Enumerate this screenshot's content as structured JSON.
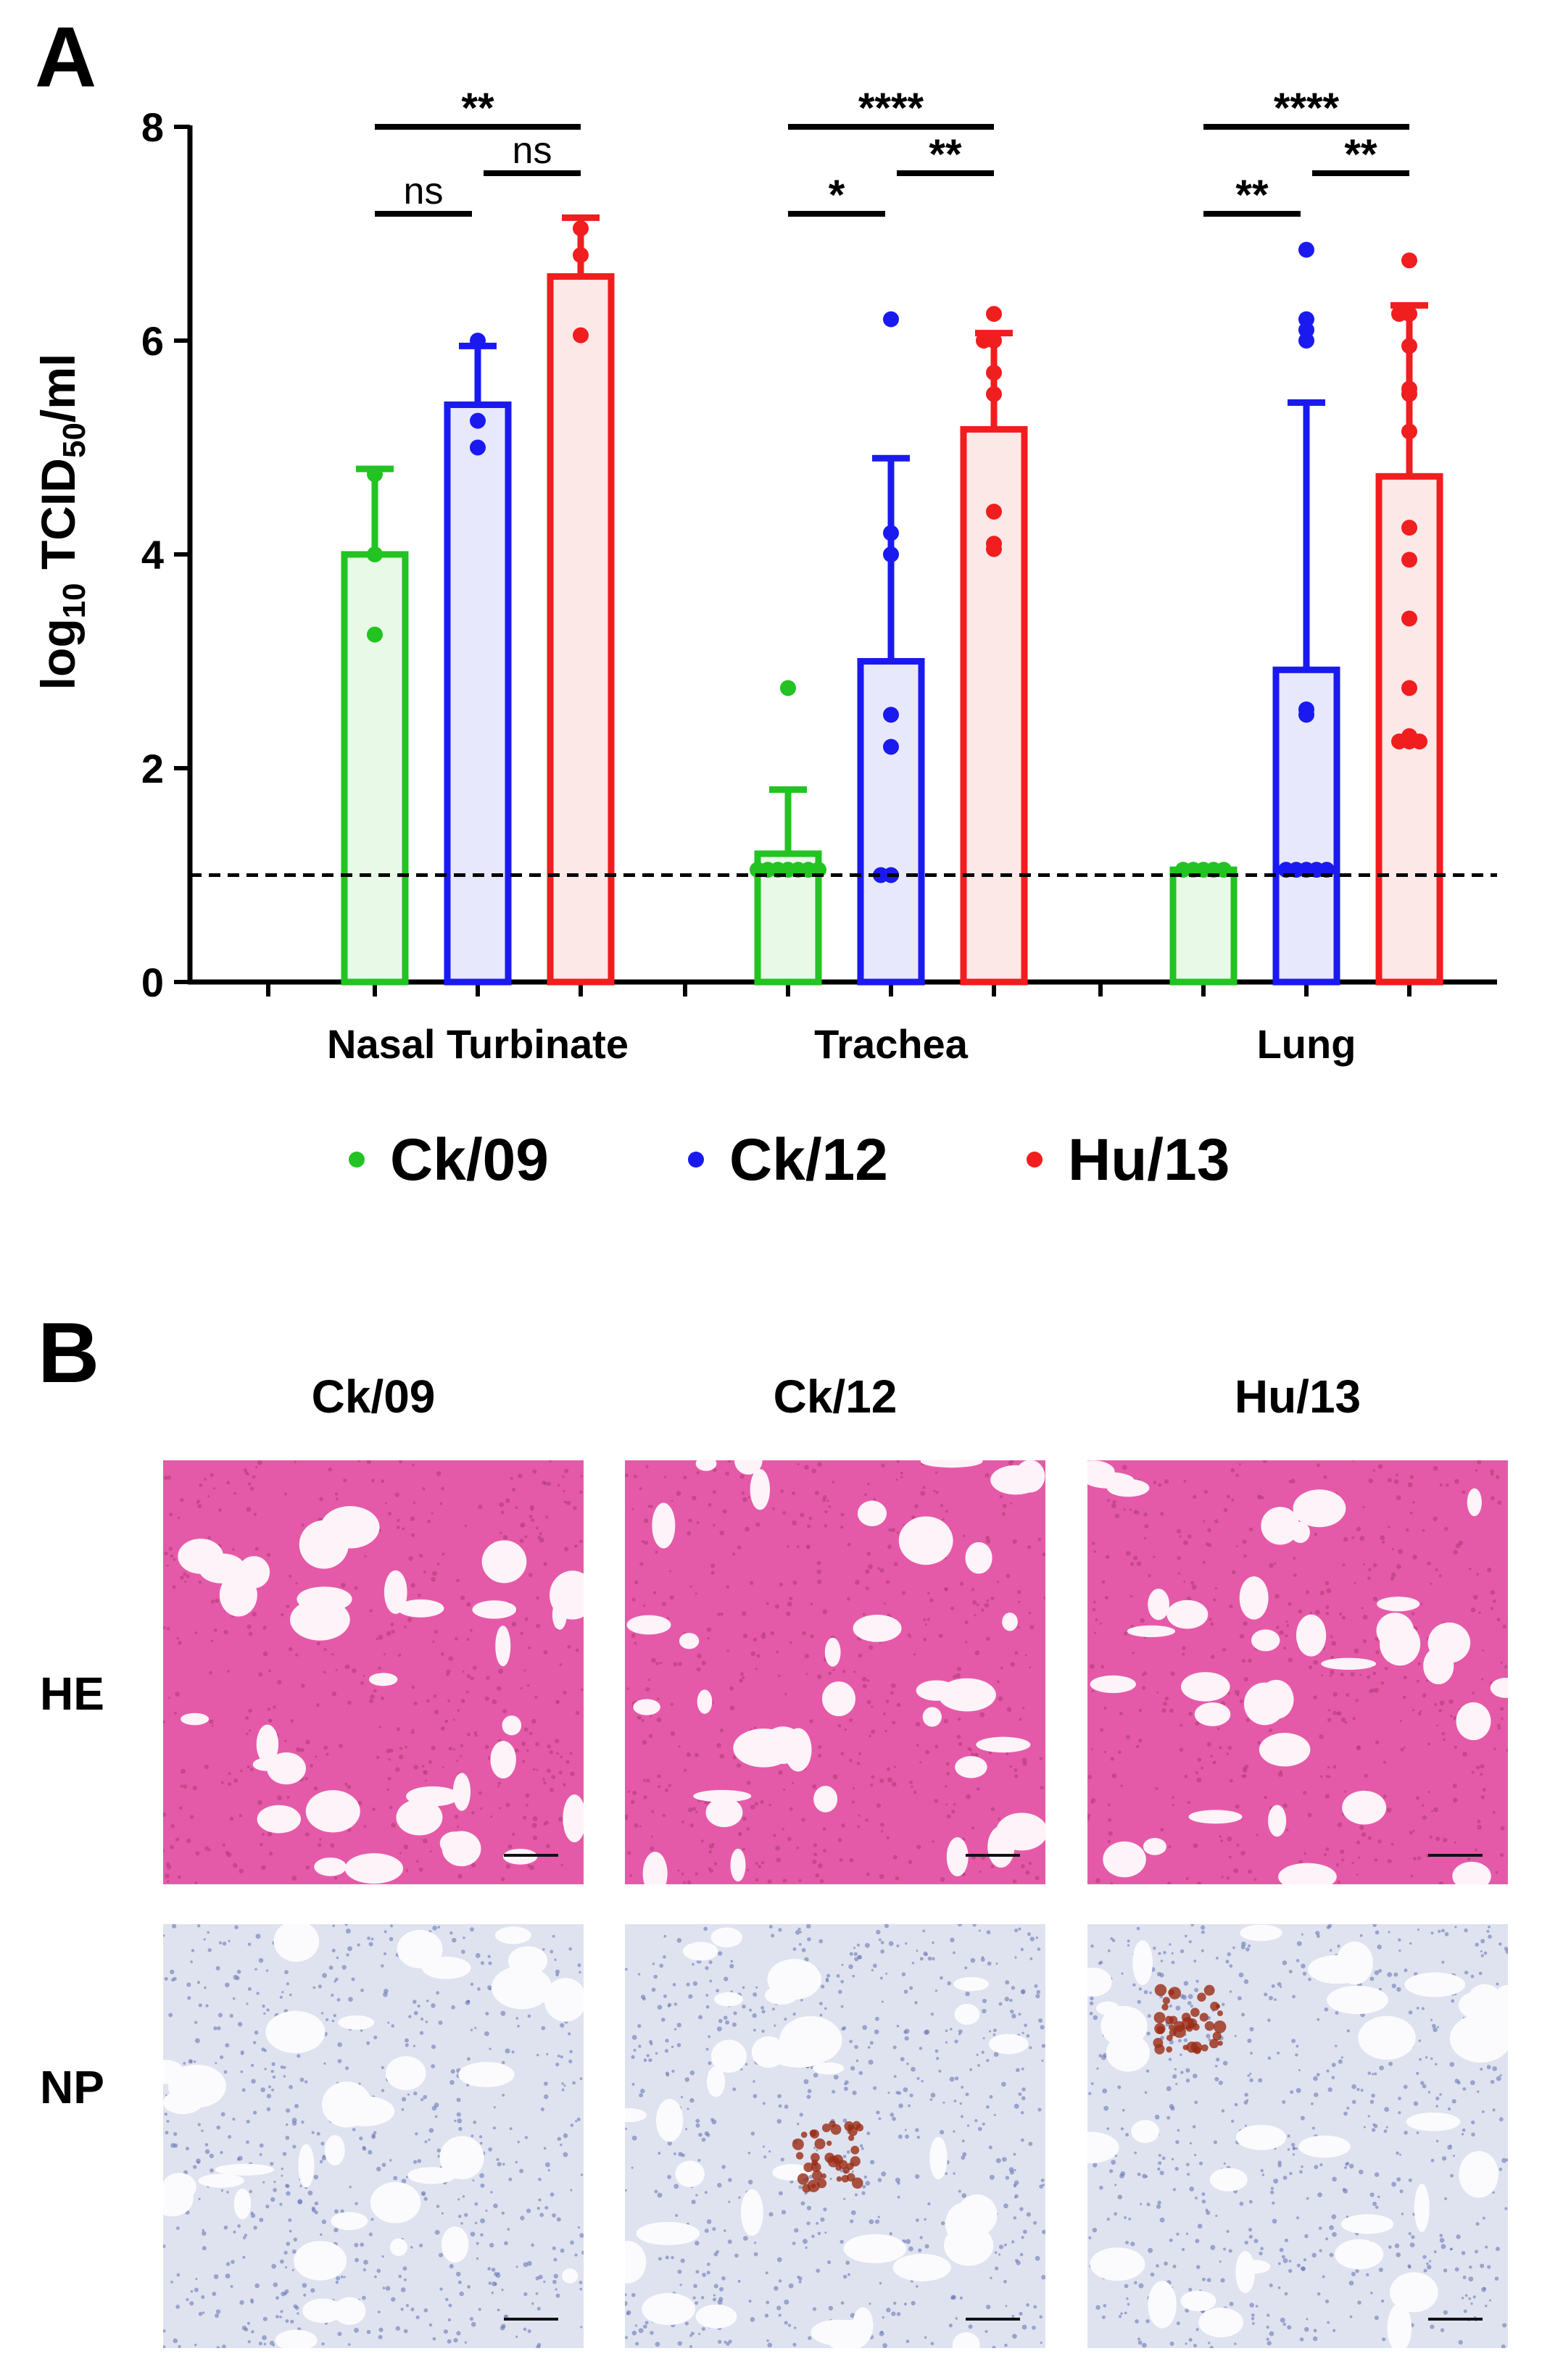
{
  "panel_a": {
    "letter": "A",
    "ylabel_main": "log",
    "ylabel_sub1": "10",
    "ylabel_mid": " TCID",
    "ylabel_sub2": "50",
    "ylabel_end": "/ml",
    "legend": [
      {
        "marker": "•",
        "label": "Ck/09",
        "color": "#22c322"
      },
      {
        "marker": "•",
        "label": "Ck/12",
        "color": "#1a1af0"
      },
      {
        "marker": "•",
        "label": "Hu/13",
        "color": "#f01e1e"
      }
    ]
  },
  "panel_b": {
    "letter": "B",
    "columns": [
      "Ck/09",
      "Ck/12",
      "Hu/13"
    ],
    "rows": [
      "HE",
      "NP"
    ],
    "he_color": "#e55aa8",
    "np_color": "#dfe3ef",
    "stain_color": "#9a2a14"
  },
  "chart_data": {
    "type": "bar",
    "categories": [
      "Nasal Turbinate",
      "Trachea",
      "Lung"
    ],
    "ylim": [
      0,
      8
    ],
    "yticks": [
      "0",
      "2",
      "4",
      "6",
      "8"
    ],
    "detection_limit": 1.0,
    "grid": false,
    "legend_position": "bottom",
    "series": [
      {
        "name": "Ck/09",
        "color": "#22c322",
        "values": [
          4.0,
          1.2,
          1.05
        ],
        "errors": [
          0.8,
          0.6,
          0.0
        ],
        "points": [
          [
            4.75,
            4.0,
            3.25
          ],
          [
            2.75,
            1.05,
            1.05,
            1.05,
            1.05,
            1.05,
            1.05,
            1.05
          ],
          [
            1.05,
            1.05,
            1.05,
            1.05,
            1.05
          ]
        ]
      },
      {
        "name": "Ck/12",
        "color": "#1a1af0",
        "values": [
          5.4,
          3.0,
          2.92
        ],
        "errors": [
          0.55,
          1.9,
          2.5
        ],
        "points": [
          [
            6.0,
            5.25,
            5.0
          ],
          [
            6.2,
            4.2,
            4.0,
            2.5,
            2.2,
            1.0,
            1.0
          ],
          [
            6.85,
            6.2,
            6.1,
            6.0,
            2.55,
            2.5,
            1.05,
            1.05,
            1.05,
            1.05,
            1.05
          ]
        ]
      },
      {
        "name": "Hu/13",
        "color": "#f01e1e",
        "values": [
          6.6,
          5.17,
          4.73
        ],
        "errors": [
          0.55,
          0.9,
          1.6
        ],
        "points": [
          [
            7.05,
            6.8,
            6.05
          ],
          [
            6.25,
            6.0,
            6.0,
            5.7,
            5.5,
            4.4,
            4.1,
            4.05
          ],
          [
            6.75,
            6.25,
            6.25,
            5.95,
            5.55,
            5.5,
            5.15,
            4.25,
            3.95,
            3.4,
            2.75,
            2.3,
            2.25,
            2.25,
            2.25
          ]
        ]
      }
    ],
    "significance": [
      {
        "category": 0,
        "from": 0,
        "to": 1,
        "label": "ns"
      },
      {
        "category": 0,
        "from": 1,
        "to": 2,
        "label": "ns"
      },
      {
        "category": 0,
        "from": 0,
        "to": 2,
        "label": "**"
      },
      {
        "category": 1,
        "from": 0,
        "to": 1,
        "label": "*"
      },
      {
        "category": 1,
        "from": 1,
        "to": 2,
        "label": "**"
      },
      {
        "category": 1,
        "from": 0,
        "to": 2,
        "label": "****"
      },
      {
        "category": 2,
        "from": 0,
        "to": 1,
        "label": "**"
      },
      {
        "category": 2,
        "from": 1,
        "to": 2,
        "label": "**"
      },
      {
        "category": 2,
        "from": 0,
        "to": 2,
        "label": "****"
      }
    ]
  }
}
